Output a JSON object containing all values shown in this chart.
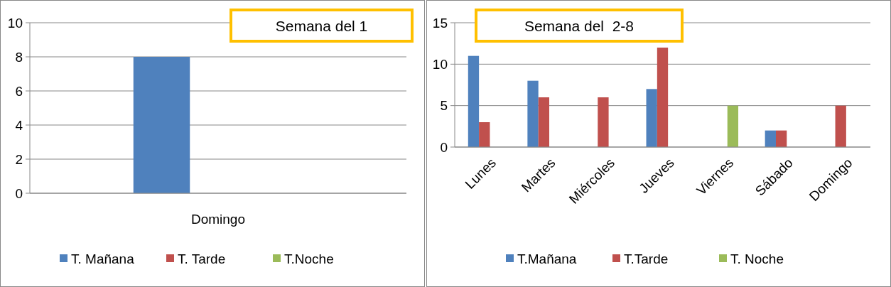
{
  "chart_data": [
    {
      "type": "bar",
      "title": "Semana del 1",
      "categories": [
        "Domingo"
      ],
      "series": [
        {
          "name": "T. Mañana",
          "color": "#4f81bd",
          "values": [
            8
          ]
        },
        {
          "name": "T. Tarde",
          "color": "#c0504d",
          "values": [
            0
          ]
        },
        {
          "name": "T.Noche",
          "color": "#9bbb59",
          "values": [
            0
          ]
        }
      ],
      "ylim": [
        0,
        10
      ],
      "yticks": [
        0,
        2,
        4,
        6,
        8,
        10
      ],
      "grid": "y",
      "legend": "bottom"
    },
    {
      "type": "bar",
      "title": "Semana del  2-8",
      "categories": [
        "Lunes",
        "Martes",
        "Miércoles",
        "Jueves",
        "Viernes",
        "Sábado",
        "Domingo"
      ],
      "series": [
        {
          "name": "T.Mañana",
          "color": "#4f81bd",
          "values": [
            11,
            8,
            0,
            7,
            0,
            2,
            0
          ]
        },
        {
          "name": "T.Tarde",
          "color": "#c0504d",
          "values": [
            3,
            6,
            6,
            12,
            0,
            2,
            5
          ]
        },
        {
          "name": "T. Noche",
          "color": "#9bbb59",
          "values": [
            0,
            0,
            0,
            0,
            5,
            0,
            0
          ]
        }
      ],
      "ylim": [
        0,
        15
      ],
      "yticks": [
        0,
        5,
        10,
        15
      ],
      "grid": "y",
      "legend": "bottom"
    }
  ]
}
